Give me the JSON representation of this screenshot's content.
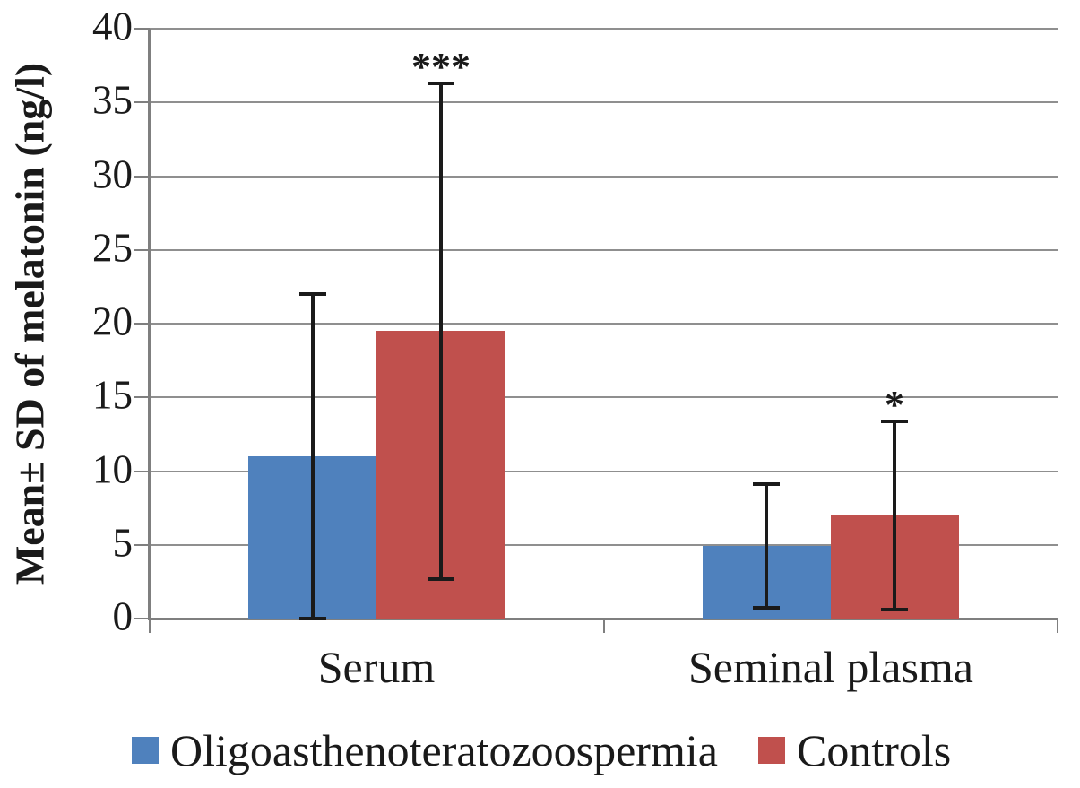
{
  "chart_data": {
    "type": "bar",
    "title": "",
    "ylabel": "Mean± SD of melatonin (ng/l)",
    "xlabel": "",
    "categories": [
      "Serum",
      "Seminal plasma"
    ],
    "ylim": [
      0,
      40
    ],
    "ytick_step": 5,
    "yticks": [
      "0",
      "5",
      "10",
      "15",
      "20",
      "25",
      "30",
      "35",
      "40"
    ],
    "grid": "horizontal",
    "legend_position": "bottom",
    "series": [
      {
        "name": "Oligoasthenoteratozoospermia",
        "color": "#4F81BD",
        "values": [
          11.0,
          4.9
        ],
        "sd": [
          11.0,
          4.2
        ],
        "annotations": [
          "",
          ""
        ]
      },
      {
        "name": "Controls",
        "color": "#C0504D",
        "values": [
          19.5,
          7.0
        ],
        "sd": [
          16.8,
          6.4
        ],
        "annotations": [
          "***",
          "*"
        ]
      }
    ],
    "error_bars": "mean ± SD, black whiskers with caps",
    "colors": {
      "gridline": "#8F8F8F",
      "axis": "#7F7F7F",
      "error_bar": "#1A1A1A",
      "text": "#1A1A1A",
      "background": "#FFFFFF"
    }
  }
}
